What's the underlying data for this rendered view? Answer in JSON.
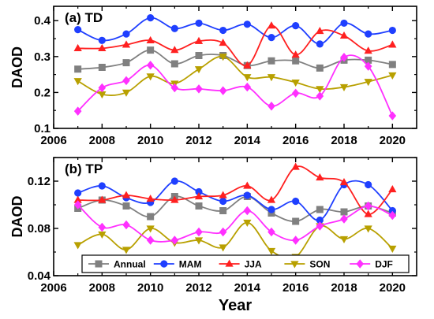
{
  "chart_data": [
    {
      "type": "line",
      "title": "(a) TD",
      "xlabel": "",
      "ylabel": "DAOD",
      "xlim": [
        2006,
        2021
      ],
      "ylim": [
        0.1,
        0.44
      ],
      "x_ticks": [
        "2006",
        "2008",
        "2010",
        "2012",
        "2014",
        "2016",
        "2018",
        "2020"
      ],
      "y_ticks": [
        "0.1",
        "0.2",
        "0.3",
        "0.4"
      ],
      "x": [
        2007,
        2008,
        2009,
        2010,
        2011,
        2012,
        2013,
        2014,
        2015,
        2016,
        2017,
        2018,
        2019,
        2020
      ],
      "series": [
        {
          "name": "Annual",
          "color": "#808080",
          "marker": "square",
          "values": [
            0.265,
            0.27,
            0.283,
            0.318,
            0.28,
            0.303,
            0.303,
            0.275,
            0.288,
            0.288,
            0.268,
            0.29,
            0.29,
            0.278
          ]
        },
        {
          "name": "MAM",
          "color": "#1f3fff",
          "marker": "circle",
          "values": [
            0.375,
            0.345,
            0.363,
            0.408,
            0.378,
            0.393,
            0.373,
            0.39,
            0.353,
            0.386,
            0.335,
            0.393,
            0.363,
            0.373
          ]
        },
        {
          "name": "JJA",
          "color": "#ff2020",
          "marker": "triangle-up",
          "values": [
            0.323,
            0.323,
            0.333,
            0.345,
            0.318,
            0.343,
            0.338,
            0.275,
            0.386,
            0.305,
            0.371,
            0.358,
            0.316,
            0.333
          ]
        },
        {
          "name": "SON",
          "color": "#b8a000",
          "marker": "triangle-down",
          "values": [
            0.232,
            0.195,
            0.2,
            0.245,
            0.225,
            0.265,
            0.3,
            0.243,
            0.243,
            0.228,
            0.21,
            0.215,
            0.23,
            0.248
          ]
        },
        {
          "name": "DJF",
          "color": "#ff30ff",
          "marker": "diamond",
          "values": [
            0.148,
            0.213,
            0.233,
            0.276,
            0.213,
            0.21,
            0.205,
            0.215,
            0.162,
            0.198,
            0.19,
            0.298,
            0.273,
            0.135
          ]
        }
      ]
    },
    {
      "type": "line",
      "title": "(b) TP",
      "xlabel": "Year",
      "ylabel": "DAOD",
      "xlim": [
        2006,
        2021
      ],
      "ylim": [
        0.04,
        0.14
      ],
      "x_ticks": [
        "2006",
        "2008",
        "2010",
        "2012",
        "2014",
        "2016",
        "2018",
        "2020"
      ],
      "y_ticks": [
        "0.04",
        "0.08",
        "0.12"
      ],
      "x": [
        2007,
        2008,
        2009,
        2010,
        2011,
        2012,
        2013,
        2014,
        2015,
        2016,
        2017,
        2018,
        2019,
        2020
      ],
      "legend_position": "bottom",
      "series": [
        {
          "name": "Annual",
          "color": "#808080",
          "marker": "square",
          "values": [
            0.097,
            0.104,
            0.099,
            0.09,
            0.107,
            0.099,
            0.095,
            0.107,
            0.093,
            0.086,
            0.096,
            0.094,
            0.099,
            0.093
          ]
        },
        {
          "name": "MAM",
          "color": "#1f3fff",
          "marker": "circle",
          "values": [
            0.11,
            0.116,
            0.106,
            0.102,
            0.12,
            0.111,
            0.103,
            0.108,
            0.096,
            0.103,
            0.087,
            0.117,
            0.117,
            0.095
          ]
        },
        {
          "name": "JJA",
          "color": "#ff2020",
          "marker": "triangle-up",
          "values": [
            0.104,
            0.104,
            0.108,
            0.105,
            0.104,
            0.107,
            0.108,
            0.116,
            0.104,
            0.132,
            0.123,
            0.119,
            0.092,
            0.113
          ]
        },
        {
          "name": "SON",
          "color": "#b8a000",
          "marker": "triangle-down",
          "values": [
            0.066,
            0.075,
            0.062,
            0.08,
            0.068,
            0.07,
            0.064,
            0.085,
            0.061,
            0.056,
            0.082,
            0.071,
            0.08,
            0.063
          ]
        },
        {
          "name": "DJF",
          "color": "#ff30ff",
          "marker": "diamond",
          "values": [
            0.1,
            0.081,
            0.083,
            0.07,
            0.07,
            0.077,
            0.077,
            0.095,
            0.077,
            0.07,
            0.082,
            0.088,
            0.099,
            0.091
          ]
        }
      ]
    }
  ]
}
